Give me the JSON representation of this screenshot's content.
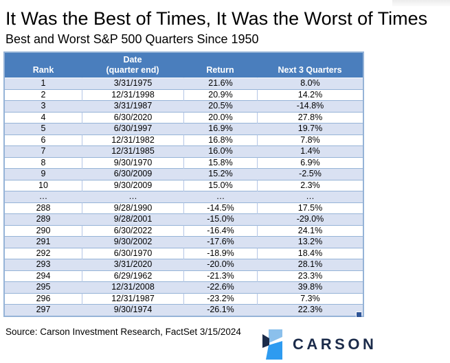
{
  "header": {
    "title": "It Was the Best of Times, It Was the Worst of Times",
    "subtitle": "Best and Worst S&P 500 Quarters Since 1950"
  },
  "footer": {
    "source": "Source: Carson Investment Research, FactSet 3/15/2024",
    "logo_wordmark": "CARSON"
  },
  "theme": {
    "header_bg": "#4A7EBD",
    "band_bg": "#D9E1F2",
    "grid_line": "#95B3D7",
    "logo_navy": "#1B2B4A",
    "logo_light_blue": "#8BC0EC",
    "logo_bright_blue": "#2E9BF0"
  },
  "chart_data": {
    "type": "table",
    "title": "It Was the Best of Times, It Was the Worst of Times",
    "subtitle": "Best and Worst S&P 500 Quarters Since 1950",
    "columns": [
      "Rank",
      "Date\n(quarter end)",
      "Return",
      "Next 3 Quarters"
    ],
    "rows": [
      [
        "1",
        "3/31/1975",
        "21.6%",
        "8.0%"
      ],
      [
        "2",
        "12/31/1998",
        "20.9%",
        "14.2%"
      ],
      [
        "3",
        "3/31/1987",
        "20.5%",
        "-14.8%"
      ],
      [
        "4",
        "6/30/2020",
        "20.0%",
        "27.8%"
      ],
      [
        "5",
        "6/30/1997",
        "16.9%",
        "19.7%"
      ],
      [
        "6",
        "12/31/1982",
        "16.8%",
        "7.8%"
      ],
      [
        "7",
        "12/31/1985",
        "16.0%",
        "1.4%"
      ],
      [
        "8",
        "9/30/1970",
        "15.8%",
        "6.9%"
      ],
      [
        "9",
        "6/30/2009",
        "15.2%",
        "-2.5%"
      ],
      [
        "10",
        "9/30/2009",
        "15.0%",
        "2.3%"
      ],
      [
        "…",
        "…",
        "…",
        "…"
      ],
      [
        "288",
        "9/28/1990",
        "-14.5%",
        "17.5%"
      ],
      [
        "289",
        "9/28/2001",
        "-15.0%",
        "-29.0%"
      ],
      [
        "290",
        "6/30/2022",
        "-16.4%",
        "24.1%"
      ],
      [
        "291",
        "9/30/2002",
        "-17.6%",
        "13.2%"
      ],
      [
        "292",
        "6/30/1970",
        "-18.9%",
        "18.4%"
      ],
      [
        "293",
        "3/31/2020",
        "-20.0%",
        "28.1%"
      ],
      [
        "294",
        "6/29/1962",
        "-21.3%",
        "23.3%"
      ],
      [
        "295",
        "12/31/2008",
        "-22.6%",
        "39.8%"
      ],
      [
        "296",
        "12/31/1987",
        "-23.2%",
        "7.3%"
      ],
      [
        "297",
        "9/30/1974",
        "-26.1%",
        "22.3%"
      ]
    ]
  }
}
